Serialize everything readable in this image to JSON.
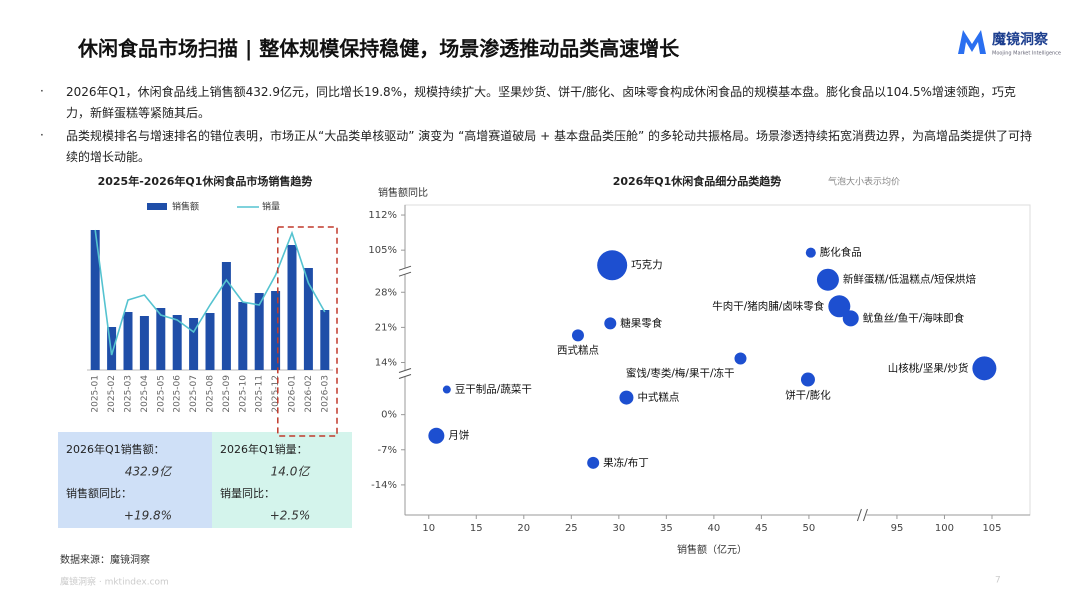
{
  "header": {
    "title": "休闲食品市场扫描 | 整体规模保持稳健，场景渗透推动品类高速增长"
  },
  "logo": {
    "name": "魔镜洞察",
    "tagline": "Moojing Market Intelligence"
  },
  "bullets": [
    "2026年Q1，休闲食品线上销售额432.9亿元，同比增长19.8%，规模持续扩大。坚果炒货、饼干/膨化、卤味零食构成休闲食品的规模基本盘。膨化食品以104.5%增速领跑，巧克力，新鲜蛋糕等紧随其后。",
    "品类规模排名与增速排名的错位表明，市场正从“大品类单核驱动” 演变为 “高增赛道破局 + 基本盘品类压舱” 的多轮动共振格局。场景渗透持续拓宽消费边界，为高增品类提供了可持续的增长动能。"
  ],
  "chart_data": [
    {
      "type": "combo",
      "title": "2025年-2026年Q1休闲食品市场销售趋势",
      "categories": [
        "2025-01",
        "2025-02",
        "2025-03",
        "2025-04",
        "2025-05",
        "2025-06",
        "2025-07",
        "2025-08",
        "2025-09",
        "2025-10",
        "2025-11",
        "2025-12",
        "2026-01",
        "2026-02",
        "2026-03"
      ],
      "series": [
        {
          "name": "销售额",
          "type": "bar",
          "color": "#1f4ea8",
          "values": [
            140,
            43,
            58,
            54,
            62,
            55,
            52,
            57,
            108,
            68,
            77,
            79,
            125,
            102,
            60
          ]
        },
        {
          "name": "销量",
          "type": "line",
          "color": "#55c3d0",
          "values": [
            140,
            15,
            70,
            75,
            55,
            50,
            38,
            65,
            90,
            68,
            65,
            95,
            137,
            87,
            58
          ]
        }
      ],
      "ylim": [
        0,
        150
      ],
      "highlight_color": "#c0392b"
    },
    {
      "type": "bubble",
      "title": "2026年Q1休闲食品细分品类趋势",
      "note": "气泡大小表示均价",
      "xlabel": "销售额（亿元）",
      "ylabel": "销售额同比",
      "color": "#1d4fd0",
      "labels": [
        "膨化食品",
        "巧克力",
        "新鲜蛋糕/低温糕点/短保烘焙",
        "牛肉干/猪肉脯/卤味零食",
        "鱿鱼丝/鱼干/海味即食",
        "糖果零食",
        "西式糕点",
        "蜜饯/枣类/梅/果干/冻干",
        "饼干/膨化",
        "山核桃/坚果/炒货",
        "豆干制品/蔬菜干",
        "中式糕点",
        "月饼",
        "果冻/布丁"
      ],
      "x": [
        50.2,
        29.3,
        52,
        53.2,
        54.4,
        29.1,
        25.7,
        42.8,
        49.9,
        104.2,
        11.9,
        30.8,
        10.8,
        27.3
      ],
      "values": [
        104.5,
        102,
        30.5,
        25.2,
        22.8,
        21.8,
        19.4,
        14.8,
        7,
        12.6,
        5,
        3.4,
        -4.2,
        -9.6
      ],
      "sizes": [
        5,
        15,
        11,
        11,
        8,
        6,
        6,
        6,
        7,
        12,
        4,
        7,
        8,
        6
      ],
      "xlim": [
        7.5,
        109
      ],
      "xticks": [
        10,
        15,
        20,
        25,
        30,
        35,
        40,
        45,
        50,
        95,
        100,
        105
      ],
      "x_breaks": [
        [
          55,
          92
        ]
      ],
      "ylim": [
        -20,
        114
      ],
      "yticks": [
        {
          "value": -14,
          "label": "-14%"
        },
        {
          "value": -7,
          "label": "-7%"
        },
        {
          "value": 0,
          "label": "0%"
        },
        {
          "value": 14,
          "label": "14%"
        },
        {
          "value": 21,
          "label": "21%"
        },
        {
          "value": 28,
          "label": "28%"
        },
        {
          "value": 105,
          "label": "105%"
        },
        {
          "value": 112,
          "label": "112%"
        }
      ],
      "y_breaks": [
        [
          7,
          13
        ],
        [
          31,
          102
        ]
      ]
    }
  ],
  "kpis": {
    "sales_label": "2026年Q1销售额：",
    "sales_value": "432.9亿",
    "sales_yoy_label": "销售额同比：",
    "sales_yoy_value": "+19.8%",
    "volume_label": "2026年Q1销量：",
    "volume_value": "14.0亿",
    "volume_yoy_label": "销量同比：",
    "volume_yoy_value": "+2.5%"
  },
  "footer": {
    "source": "数据来源：魔镜洞察",
    "watermark": "魔镜洞察 · mktindex.com",
    "page": "7"
  }
}
